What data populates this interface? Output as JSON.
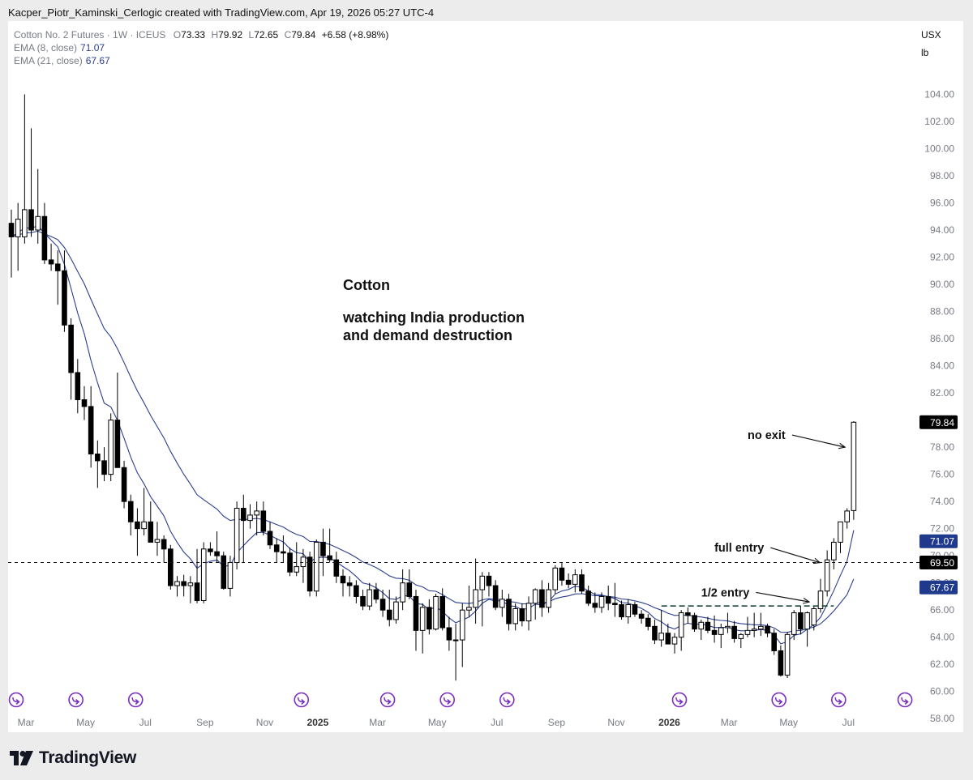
{
  "header": {
    "attribution": "Kacper_Piotr_Kaminski_Cerlogic created with TradingView.com, Apr 19, 2026 05:27 UTC-4"
  },
  "legend": {
    "symbol": "Cotton No. 2 Futures · 1W · ICEUS",
    "o_label": "O",
    "o_value": "73.33",
    "h_label": "H",
    "h_value": "79.92",
    "l_label": "L",
    "l_value": "72.65",
    "c_label": "C",
    "c_value": "79.84",
    "change": "+6.58 (+8.98%)",
    "ema8_label": "EMA (8, close)",
    "ema8_value": "71.07",
    "ema21_label": "EMA (21, close)",
    "ema21_value": "67.67"
  },
  "units": {
    "currency": "USX",
    "unit": "lb"
  },
  "footer": {
    "brand": "TradingView"
  },
  "colors": {
    "ema": "#2a3f8f",
    "candle_up": "#ffffff",
    "candle_down": "#000000",
    "price_label_bg": "#000000",
    "ema_label_bg": "#1f3a8c",
    "event_icon": "#7b2fbf"
  },
  "chart_data": {
    "type": "candlestick",
    "title": "Cotton No. 2 Futures · 1W · ICEUS",
    "ylabel": "",
    "y_ticks": [
      "58.00",
      "60.00",
      "62.00",
      "64.00",
      "66.00",
      "68.00",
      "70.00",
      "72.00",
      "74.00",
      "76.00",
      "78.00",
      "80.00",
      "82.00",
      "84.00",
      "86.00",
      "88.00",
      "90.00",
      "92.00",
      "94.00",
      "96.00",
      "98.00",
      "100.00",
      "102.00",
      "104.00"
    ],
    "ylim": [
      57,
      109.4
    ],
    "grid": false,
    "x_ticks": [
      {
        "label": "Mar",
        "week": 0,
        "bold": false
      },
      {
        "label": "May",
        "week": 9,
        "bold": false
      },
      {
        "label": "Jul",
        "week": 18,
        "bold": false
      },
      {
        "label": "Sep",
        "week": 27,
        "bold": false
      },
      {
        "label": "Nov",
        "week": 36,
        "bold": false
      },
      {
        "label": "2025",
        "week": 44,
        "bold": true
      },
      {
        "label": "Mar",
        "week": 53,
        "bold": false
      },
      {
        "label": "May",
        "week": 62,
        "bold": false
      },
      {
        "label": "Jul",
        "week": 71,
        "bold": false
      },
      {
        "label": "Sep",
        "week": 80,
        "bold": false
      },
      {
        "label": "Nov",
        "week": 89,
        "bold": false
      },
      {
        "label": "2026",
        "week": 97,
        "bold": true
      },
      {
        "label": "Mar",
        "week": 106,
        "bold": false
      },
      {
        "label": "May",
        "week": 115,
        "bold": false
      },
      {
        "label": "Jul",
        "week": 124,
        "bold": false
      }
    ],
    "candles": [
      {
        "o": 94.5,
        "h": 95.5,
        "l": 90.5,
        "c": 93.5
      },
      {
        "o": 93.5,
        "h": 96.0,
        "l": 91.0,
        "c": 94.8
      },
      {
        "o": 93.5,
        "h": 104.0,
        "l": 93.0,
        "c": 95.5
      },
      {
        "o": 95.5,
        "h": 101.5,
        "l": 93.5,
        "c": 94.0
      },
      {
        "o": 94.0,
        "h": 98.5,
        "l": 93.0,
        "c": 95.0
      },
      {
        "o": 95.0,
        "h": 96.0,
        "l": 91.5,
        "c": 91.8
      },
      {
        "o": 91.8,
        "h": 93.0,
        "l": 91.0,
        "c": 91.5
      },
      {
        "o": 91.5,
        "h": 92.5,
        "l": 88.5,
        "c": 91.0
      },
      {
        "o": 91.0,
        "h": 92.5,
        "l": 86.5,
        "c": 87.0
      },
      {
        "o": 87.0,
        "h": 87.5,
        "l": 81.5,
        "c": 83.5
      },
      {
        "o": 83.5,
        "h": 84.5,
        "l": 80.5,
        "c": 81.5
      },
      {
        "o": 81.5,
        "h": 82.5,
        "l": 80.0,
        "c": 81.0
      },
      {
        "o": 81.0,
        "h": 82.5,
        "l": 76.5,
        "c": 77.5
      },
      {
        "o": 77.5,
        "h": 78.5,
        "l": 75.0,
        "c": 77.0
      },
      {
        "o": 77.0,
        "h": 78.0,
        "l": 75.5,
        "c": 76.0
      },
      {
        "o": 76.0,
        "h": 80.5,
        "l": 75.5,
        "c": 80.0
      },
      {
        "o": 80.0,
        "h": 83.5,
        "l": 76.5,
        "c": 76.5
      },
      {
        "o": 76.5,
        "h": 77.0,
        "l": 73.5,
        "c": 74.0
      },
      {
        "o": 74.0,
        "h": 74.5,
        "l": 71.5,
        "c": 72.5
      },
      {
        "o": 72.5,
        "h": 73.5,
        "l": 70.0,
        "c": 72.0
      },
      {
        "o": 72.0,
        "h": 75.0,
        "l": 71.5,
        "c": 72.5
      },
      {
        "o": 72.5,
        "h": 74.0,
        "l": 71.0,
        "c": 71.0
      },
      {
        "o": 71.0,
        "h": 72.5,
        "l": 70.0,
        "c": 71.2
      },
      {
        "o": 71.2,
        "h": 71.5,
        "l": 69.5,
        "c": 70.5
      },
      {
        "o": 70.5,
        "h": 70.8,
        "l": 67.5,
        "c": 67.8
      },
      {
        "o": 67.8,
        "h": 68.5,
        "l": 67.0,
        "c": 68.1
      },
      {
        "o": 68.1,
        "h": 68.6,
        "l": 67.0,
        "c": 67.8
      },
      {
        "o": 67.8,
        "h": 68.5,
        "l": 66.5,
        "c": 68.0
      },
      {
        "o": 68.0,
        "h": 70.5,
        "l": 66.5,
        "c": 66.7
      },
      {
        "o": 66.7,
        "h": 71.0,
        "l": 66.5,
        "c": 70.5
      },
      {
        "o": 70.5,
        "h": 71.0,
        "l": 70.0,
        "c": 70.3
      },
      {
        "o": 70.3,
        "h": 71.8,
        "l": 69.5,
        "c": 70.0
      },
      {
        "o": 70.0,
        "h": 70.3,
        "l": 67.5,
        "c": 67.6
      },
      {
        "o": 67.6,
        "h": 70.0,
        "l": 67.0,
        "c": 69.5
      },
      {
        "o": 69.5,
        "h": 74.0,
        "l": 69.0,
        "c": 73.5
      },
      {
        "o": 73.5,
        "h": 74.5,
        "l": 69.5,
        "c": 72.6
      },
      {
        "o": 72.6,
        "h": 73.8,
        "l": 72.0,
        "c": 73.0
      },
      {
        "o": 73.0,
        "h": 74.0,
        "l": 71.5,
        "c": 73.3
      },
      {
        "o": 73.3,
        "h": 74.0,
        "l": 71.5,
        "c": 71.8
      },
      {
        "o": 71.8,
        "h": 72.5,
        "l": 70.5,
        "c": 70.8
      },
      {
        "o": 70.8,
        "h": 71.3,
        "l": 69.5,
        "c": 70.3
      },
      {
        "o": 70.3,
        "h": 71.5,
        "l": 69.5,
        "c": 70.2
      },
      {
        "o": 70.2,
        "h": 70.6,
        "l": 68.5,
        "c": 68.8
      },
      {
        "o": 68.8,
        "h": 71.0,
        "l": 68.5,
        "c": 69.2
      },
      {
        "o": 69.2,
        "h": 70.5,
        "l": 68.0,
        "c": 69.9
      },
      {
        "o": 69.9,
        "h": 70.3,
        "l": 67.0,
        "c": 67.4
      },
      {
        "o": 67.4,
        "h": 71.2,
        "l": 67.0,
        "c": 71.0
      },
      {
        "o": 71.0,
        "h": 72.0,
        "l": 68.5,
        "c": 70.0
      },
      {
        "o": 70.0,
        "h": 72.0,
        "l": 69.5,
        "c": 69.7
      },
      {
        "o": 69.7,
        "h": 70.3,
        "l": 68.0,
        "c": 68.5
      },
      {
        "o": 68.5,
        "h": 69.0,
        "l": 67.0,
        "c": 68.0
      },
      {
        "o": 68.0,
        "h": 68.5,
        "l": 67.0,
        "c": 67.8
      },
      {
        "o": 67.8,
        "h": 68.2,
        "l": 66.5,
        "c": 67.0
      },
      {
        "o": 67.0,
        "h": 67.5,
        "l": 66.0,
        "c": 66.3
      },
      {
        "o": 66.3,
        "h": 68.0,
        "l": 66.0,
        "c": 67.5
      },
      {
        "o": 67.5,
        "h": 68.0,
        "l": 66.5,
        "c": 66.8
      },
      {
        "o": 66.8,
        "h": 67.5,
        "l": 65.5,
        "c": 66.0
      },
      {
        "o": 66.0,
        "h": 67.5,
        "l": 64.8,
        "c": 65.3
      },
      {
        "o": 65.3,
        "h": 67.0,
        "l": 65.0,
        "c": 66.6
      },
      {
        "o": 66.6,
        "h": 69.0,
        "l": 66.0,
        "c": 68.0
      },
      {
        "o": 68.0,
        "h": 69.0,
        "l": 66.8,
        "c": 67.0
      },
      {
        "o": 67.0,
        "h": 67.5,
        "l": 63.0,
        "c": 64.5
      },
      {
        "o": 64.5,
        "h": 66.5,
        "l": 62.8,
        "c": 66.2
      },
      {
        "o": 66.2,
        "h": 66.8,
        "l": 64.2,
        "c": 64.6
      },
      {
        "o": 64.6,
        "h": 67.2,
        "l": 64.5,
        "c": 67.0
      },
      {
        "o": 67.0,
        "h": 67.6,
        "l": 64.5,
        "c": 64.7
      },
      {
        "o": 64.7,
        "h": 65.5,
        "l": 63.0,
        "c": 63.8
      },
      {
        "o": 63.8,
        "h": 65.0,
        "l": 60.8,
        "c": 63.8
      },
      {
        "o": 63.8,
        "h": 66.5,
        "l": 61.8,
        "c": 66.0
      },
      {
        "o": 66.0,
        "h": 67.8,
        "l": 65.5,
        "c": 66.2
      },
      {
        "o": 66.2,
        "h": 69.8,
        "l": 65.0,
        "c": 67.5
      },
      {
        "o": 67.5,
        "h": 68.8,
        "l": 64.8,
        "c": 68.5
      },
      {
        "o": 68.5,
        "h": 68.8,
        "l": 67.0,
        "c": 67.8
      },
      {
        "o": 67.8,
        "h": 68.2,
        "l": 66.0,
        "c": 66.2
      },
      {
        "o": 66.2,
        "h": 67.5,
        "l": 65.5,
        "c": 66.8
      },
      {
        "o": 66.8,
        "h": 67.2,
        "l": 64.5,
        "c": 65.0
      },
      {
        "o": 65.0,
        "h": 66.5,
        "l": 64.5,
        "c": 66.1
      },
      {
        "o": 66.1,
        "h": 66.5,
        "l": 64.8,
        "c": 65.2
      },
      {
        "o": 65.2,
        "h": 67.0,
        "l": 64.5,
        "c": 66.5
      },
      {
        "o": 66.5,
        "h": 67.6,
        "l": 65.3,
        "c": 67.5
      },
      {
        "o": 67.5,
        "h": 68.2,
        "l": 65.5,
        "c": 66.2
      },
      {
        "o": 66.2,
        "h": 68.0,
        "l": 65.8,
        "c": 67.5
      },
      {
        "o": 67.5,
        "h": 69.3,
        "l": 67.2,
        "c": 69.1
      },
      {
        "o": 69.1,
        "h": 69.5,
        "l": 67.8,
        "c": 68.2
      },
      {
        "o": 68.2,
        "h": 68.7,
        "l": 67.6,
        "c": 67.9
      },
      {
        "o": 67.9,
        "h": 69.0,
        "l": 67.3,
        "c": 68.6
      },
      {
        "o": 68.6,
        "h": 69.0,
        "l": 67.2,
        "c": 67.4
      },
      {
        "o": 67.4,
        "h": 67.8,
        "l": 66.3,
        "c": 66.5
      },
      {
        "o": 66.5,
        "h": 67.3,
        "l": 65.8,
        "c": 66.2
      },
      {
        "o": 66.2,
        "h": 67.3,
        "l": 65.8,
        "c": 67.0
      },
      {
        "o": 67.0,
        "h": 67.8,
        "l": 66.0,
        "c": 66.5
      },
      {
        "o": 66.5,
        "h": 68.0,
        "l": 65.5,
        "c": 66.4
      },
      {
        "o": 66.4,
        "h": 66.7,
        "l": 65.3,
        "c": 65.5
      },
      {
        "o": 65.5,
        "h": 66.8,
        "l": 65.0,
        "c": 66.4
      },
      {
        "o": 66.4,
        "h": 66.6,
        "l": 65.5,
        "c": 65.7
      },
      {
        "o": 65.7,
        "h": 66.0,
        "l": 65.0,
        "c": 65.4
      },
      {
        "o": 65.4,
        "h": 65.7,
        "l": 64.5,
        "c": 64.8
      },
      {
        "o": 64.8,
        "h": 65.3,
        "l": 63.5,
        "c": 63.8
      },
      {
        "o": 63.8,
        "h": 66.0,
        "l": 63.3,
        "c": 64.3
      },
      {
        "o": 64.3,
        "h": 65.0,
        "l": 63.5,
        "c": 63.5
      },
      {
        "o": 63.5,
        "h": 64.3,
        "l": 62.8,
        "c": 64.0
      },
      {
        "o": 64.0,
        "h": 66.0,
        "l": 63.0,
        "c": 65.8
      },
      {
        "o": 65.8,
        "h": 66.2,
        "l": 65.0,
        "c": 65.6
      },
      {
        "o": 65.6,
        "h": 65.8,
        "l": 64.4,
        "c": 64.6
      },
      {
        "o": 64.6,
        "h": 65.3,
        "l": 63.8,
        "c": 65.1
      },
      {
        "o": 65.1,
        "h": 65.5,
        "l": 64.3,
        "c": 64.5
      },
      {
        "o": 64.5,
        "h": 65.6,
        "l": 63.6,
        "c": 64.2
      },
      {
        "o": 64.2,
        "h": 65.0,
        "l": 63.2,
        "c": 64.7
      },
      {
        "o": 64.7,
        "h": 65.8,
        "l": 64.3,
        "c": 64.8
      },
      {
        "o": 64.8,
        "h": 65.2,
        "l": 63.6,
        "c": 63.9
      },
      {
        "o": 63.9,
        "h": 64.3,
        "l": 63.2,
        "c": 64.2
      },
      {
        "o": 64.2,
        "h": 65.5,
        "l": 64.0,
        "c": 64.5
      },
      {
        "o": 64.5,
        "h": 65.8,
        "l": 64.0,
        "c": 64.6
      },
      {
        "o": 64.6,
        "h": 65.8,
        "l": 64.1,
        "c": 64.8
      },
      {
        "o": 64.8,
        "h": 65.0,
        "l": 64.0,
        "c": 64.3
      },
      {
        "o": 64.3,
        "h": 64.6,
        "l": 62.7,
        "c": 63.0
      },
      {
        "o": 63.0,
        "h": 63.4,
        "l": 61.1,
        "c": 61.2
      },
      {
        "o": 61.2,
        "h": 64.4,
        "l": 61.0,
        "c": 64.2
      },
      {
        "o": 64.2,
        "h": 66.0,
        "l": 63.8,
        "c": 65.8
      },
      {
        "o": 65.8,
        "h": 66.3,
        "l": 64.2,
        "c": 64.6
      },
      {
        "o": 64.6,
        "h": 65.9,
        "l": 63.3,
        "c": 65.8
      },
      {
        "o": 64.9,
        "h": 66.3,
        "l": 64.5,
        "c": 66.1
      },
      {
        "o": 66.1,
        "h": 68.3,
        "l": 65.8,
        "c": 67.4
      },
      {
        "o": 67.4,
        "h": 70.4,
        "l": 67.0,
        "c": 69.7
      },
      {
        "o": 69.7,
        "h": 71.3,
        "l": 69.0,
        "c": 71.0
      },
      {
        "o": 71.0,
        "h": 72.0,
        "l": 70.2,
        "c": 72.5
      },
      {
        "o": 72.5,
        "h": 73.5,
        "l": 72.0,
        "c": 73.3
      },
      {
        "o": 73.33,
        "h": 79.92,
        "l": 72.65,
        "c": 79.84
      }
    ],
    "series": [
      {
        "name": "EMA (8, close)",
        "last": 71.07
      },
      {
        "name": "EMA (21, close)",
        "last": 67.67
      }
    ],
    "price_labels": [
      {
        "value": 79.84,
        "text": "79.84",
        "style": "price"
      },
      {
        "value": 71.07,
        "text": "71.07",
        "style": "ema"
      },
      {
        "value": 69.5,
        "text": "69.50",
        "style": "price"
      },
      {
        "value": 67.67,
        "text": "67.67",
        "style": "ema"
      }
    ],
    "horizontal_line": {
      "value": 69.5,
      "style": "dashed"
    },
    "trend_line": {
      "from_week": 98,
      "to_week": 124,
      "value": 66.3,
      "style": "dashed"
    },
    "annotations": [
      {
        "id": "title",
        "text": "Cotton",
        "week": 50,
        "value": 89.6
      },
      {
        "id": "subtitle1",
        "text": "watching India production",
        "week": 50,
        "value": 87.2
      },
      {
        "id": "subtitle2",
        "text": "and demand destruction",
        "week": 50,
        "value": 85.9
      },
      {
        "id": "no-exit",
        "text": "no exit",
        "week": 111,
        "value": 78.6,
        "arrow_to_week": 125.7,
        "arrow_to_value": 78.0
      },
      {
        "id": "full-entry",
        "text": "full entry",
        "week": 106,
        "value": 70.3,
        "arrow_to_week": 121.9,
        "arrow_to_value": 69.5
      },
      {
        "id": "half-entry",
        "text": "1/2 entry",
        "week": 104,
        "value": 67.0,
        "arrow_to_week": 120.3,
        "arrow_to_value": 66.6
      }
    ],
    "event_markers_weeks": [
      0,
      9,
      18,
      43,
      56,
      65,
      74,
      100,
      115,
      124,
      134
    ]
  }
}
